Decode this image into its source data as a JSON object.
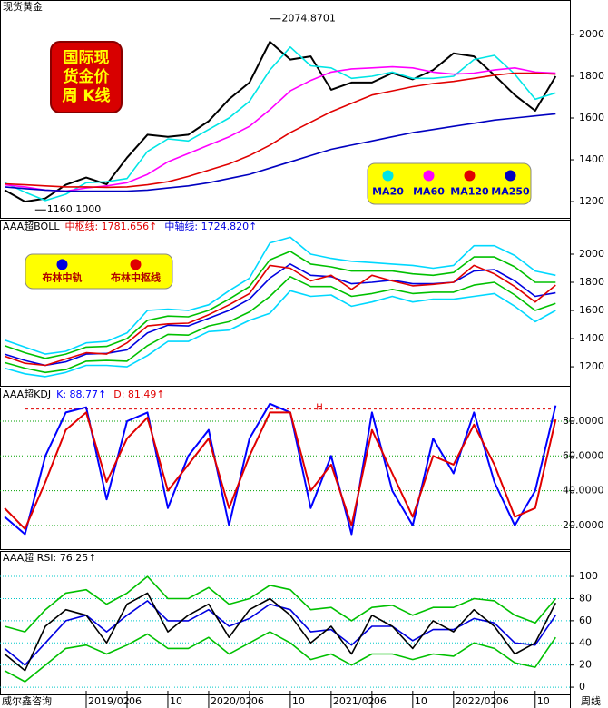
{
  "chart_data": [
    {
      "type": "line",
      "title": "现货黄金",
      "badge_lines": [
        "国际现",
        "货金价",
        "周  K线"
      ],
      "xlim": [
        0.55,
        56.4
      ],
      "x": [
        1,
        3,
        5,
        7,
        9,
        11,
        13,
        15,
        17,
        19,
        21,
        23,
        25,
        27,
        29,
        31,
        33,
        35,
        37,
        39,
        41,
        43,
        45,
        47,
        49,
        51,
        53,
        55
      ],
      "ylim": [
        1122,
        2165
      ],
      "yticks": [
        1200,
        1400,
        1600,
        1800,
        2000
      ],
      "annotations": [
        {
          "x": 27,
          "value": 2074.8701,
          "label": "2074.8701"
        },
        {
          "x": 4,
          "value": 1160.1,
          "label": "1160.1000"
        }
      ],
      "series": [
        {
          "color": "#000000",
          "values": [
            1255,
            1200,
            1215,
            1280,
            1315,
            1283,
            1410,
            1520,
            1510,
            1520,
            1585,
            1690,
            1770,
            1965,
            1880,
            1895,
            1735,
            1770,
            1770,
            1815,
            1785,
            1830,
            1910,
            1895,
            1805,
            1710,
            1635,
            1800
          ]
        },
        {
          "name": "MA20",
          "color": "#00e5e5",
          "values": [
            1290,
            1245,
            1205,
            1235,
            1290,
            1295,
            1310,
            1440,
            1500,
            1490,
            1545,
            1600,
            1680,
            1830,
            1940,
            1850,
            1840,
            1790,
            1800,
            1820,
            1790,
            1790,
            1800,
            1880,
            1900,
            1810,
            1690,
            1720
          ]
        },
        {
          "name": "MA60",
          "color": "#ff00ff",
          "values": [
            1280,
            1270,
            1255,
            1250,
            1265,
            1275,
            1290,
            1330,
            1390,
            1430,
            1470,
            1510,
            1560,
            1640,
            1730,
            1780,
            1820,
            1835,
            1840,
            1845,
            1840,
            1820,
            1810,
            1815,
            1830,
            1840,
            1820,
            1815
          ]
        },
        {
          "name": "MA120",
          "color": "#e00000",
          "values": [
            1285,
            1280,
            1275,
            1270,
            1270,
            1268,
            1270,
            1280,
            1295,
            1320,
            1350,
            1380,
            1420,
            1470,
            1530,
            1580,
            1630,
            1670,
            1710,
            1730,
            1750,
            1765,
            1775,
            1790,
            1805,
            1815,
            1815,
            1810
          ]
        },
        {
          "name": "MA250",
          "color": "#0000c0",
          "values": [
            1270,
            1262,
            1255,
            1250,
            1250,
            1250,
            1250,
            1255,
            1265,
            1275,
            1290,
            1310,
            1330,
            1360,
            1390,
            1420,
            1450,
            1470,
            1490,
            1510,
            1530,
            1545,
            1560,
            1575,
            1590,
            1600,
            1610,
            1620
          ]
        }
      ]
    },
    {
      "type": "line",
      "title": "AAA超BOLL",
      "readouts": [
        {
          "text": "中枢线: 1781.656↑",
          "color": "#e00000"
        },
        {
          "text": "中轴线: 1724.820↑",
          "color": "#0000e0"
        }
      ],
      "xlim": [
        0.55,
        56.4
      ],
      "x": [
        1,
        3,
        5,
        7,
        9,
        11,
        13,
        15,
        17,
        19,
        21,
        23,
        25,
        27,
        29,
        31,
        33,
        35,
        37,
        39,
        41,
        43,
        45,
        47,
        49,
        51,
        53,
        55
      ],
      "ylim": [
        1065,
        2245
      ],
      "yticks": [
        1200,
        1400,
        1600,
        1800,
        2000
      ],
      "series": [
        {
          "name": "布林中轨",
          "color": "#0000e0",
          "values": [
            1290,
            1245,
            1210,
            1235,
            1290,
            1295,
            1320,
            1440,
            1495,
            1490,
            1545,
            1600,
            1680,
            1830,
            1930,
            1850,
            1840,
            1790,
            1800,
            1815,
            1790,
            1790,
            1800,
            1880,
            1890,
            1810,
            1700,
            1725
          ]
        },
        {
          "name": "布林中枢线",
          "color": "#e00000",
          "values": [
            1275,
            1225,
            1210,
            1255,
            1300,
            1290,
            1370,
            1490,
            1505,
            1510,
            1570,
            1640,
            1720,
            1920,
            1900,
            1810,
            1850,
            1750,
            1850,
            1810,
            1775,
            1785,
            1800,
            1920,
            1860,
            1770,
            1660,
            1780
          ]
        },
        {
          "color": "#00d8ff",
          "values": [
            1390,
            1340,
            1290,
            1310,
            1370,
            1380,
            1440,
            1600,
            1610,
            1600,
            1640,
            1740,
            1830,
            2080,
            2120,
            2000,
            1970,
            1950,
            1940,
            1930,
            1920,
            1900,
            1920,
            2060,
            2060,
            1990,
            1880,
            1850
          ]
        },
        {
          "color": "#00d8ff",
          "values": [
            1190,
            1150,
            1130,
            1160,
            1210,
            1210,
            1200,
            1280,
            1380,
            1380,
            1450,
            1460,
            1530,
            1580,
            1740,
            1700,
            1710,
            1630,
            1660,
            1700,
            1660,
            1680,
            1680,
            1700,
            1720,
            1630,
            1520,
            1600
          ]
        },
        {
          "color": "#00c000",
          "values": [
            1350,
            1300,
            1260,
            1290,
            1340,
            1345,
            1400,
            1530,
            1560,
            1555,
            1600,
            1680,
            1770,
            1960,
            2020,
            1930,
            1910,
            1880,
            1880,
            1880,
            1860,
            1850,
            1870,
            1980,
            1980,
            1910,
            1800,
            1800
          ]
        },
        {
          "color": "#00c000",
          "values": [
            1230,
            1190,
            1160,
            1180,
            1240,
            1245,
            1240,
            1350,
            1430,
            1425,
            1490,
            1520,
            1590,
            1700,
            1840,
            1770,
            1770,
            1700,
            1720,
            1750,
            1720,
            1730,
            1730,
            1780,
            1800,
            1710,
            1600,
            1650
          ]
        }
      ]
    },
    {
      "type": "line",
      "title": "AAA超KDJ",
      "readouts": [
        {
          "text": "K: 88.77↑",
          "color": "#0000ff"
        },
        {
          "text": "D: 81.49↑",
          "color": "#e00000"
        }
      ],
      "xlim": [
        0.55,
        56.4
      ],
      "x": [
        1,
        3,
        5,
        7,
        9,
        11,
        13,
        15,
        17,
        19,
        21,
        23,
        25,
        27,
        29,
        31,
        33,
        35,
        37,
        39,
        41,
        43,
        45,
        47,
        49,
        51,
        53,
        55
      ],
      "ylim": [
        6.4,
        99.3
      ],
      "yticks": [
        {
          "value": 20,
          "label": "20.0000"
        },
        {
          "value": 40,
          "label": "40.0000"
        },
        {
          "value": 60,
          "label": "60.0000"
        },
        {
          "value": 80,
          "label": "80.0000"
        }
      ],
      "grid": true,
      "grid_color": "#00a000",
      "h_level": {
        "value": 87,
        "label": "H"
      },
      "series": [
        {
          "color": "#0000ff",
          "values": [
            25,
            15,
            60,
            85,
            88,
            35,
            80,
            85,
            30,
            60,
            75,
            20,
            70,
            90,
            85,
            30,
            60,
            15,
            85,
            40,
            20,
            70,
            50,
            85,
            45,
            20,
            40,
            89
          ]
        },
        {
          "color": "#e00000",
          "values": [
            30,
            18,
            45,
            75,
            85,
            45,
            70,
            82,
            40,
            55,
            70,
            30,
            60,
            85,
            85,
            40,
            55,
            20,
            75,
            50,
            25,
            60,
            55,
            78,
            55,
            25,
            30,
            81
          ]
        }
      ]
    },
    {
      "type": "line",
      "title": "AAA超  RSI: 76.25↑",
      "xlim": [
        0.55,
        56.4
      ],
      "x": [
        1,
        3,
        5,
        7,
        9,
        11,
        13,
        15,
        17,
        19,
        21,
        23,
        25,
        27,
        29,
        31,
        33,
        35,
        37,
        39,
        41,
        43,
        45,
        47,
        49,
        51,
        53,
        55
      ],
      "ylim": [
        -6.5,
        123
      ],
      "yticks": [
        0,
        20,
        40,
        60,
        80,
        100
      ],
      "grid": true,
      "grid_color": "#00c8c8",
      "xticks": [
        {
          "value": 9,
          "label": "2019/02"
        },
        {
          "value": 13,
          "label": "06"
        },
        {
          "value": 17,
          "label": "10"
        },
        {
          "value": 21,
          "label": "2020/02"
        },
        {
          "value": 25,
          "label": "06"
        },
        {
          "value": 29,
          "label": "10"
        },
        {
          "value": 33,
          "label": "2021/02"
        },
        {
          "value": 37,
          "label": "06"
        },
        {
          "value": 41,
          "label": "10"
        },
        {
          "value": 45,
          "label": "2022/02"
        },
        {
          "value": 49,
          "label": "06"
        },
        {
          "value": 53,
          "label": "10"
        }
      ],
      "footer_left": "威尔鑫咨询",
      "footer_right": "周线",
      "series": [
        {
          "color": "#00c000",
          "values": [
            55,
            50,
            70,
            85,
            88,
            75,
            85,
            100,
            80,
            80,
            90,
            75,
            80,
            92,
            88,
            70,
            72,
            60,
            72,
            74,
            65,
            72,
            72,
            80,
            78,
            65,
            58,
            80
          ]
        },
        {
          "color": "#00c000",
          "values": [
            15,
            5,
            20,
            35,
            38,
            30,
            38,
            48,
            35,
            35,
            45,
            30,
            40,
            50,
            40,
            25,
            30,
            20,
            30,
            30,
            25,
            30,
            28,
            40,
            35,
            22,
            18,
            45
          ]
        },
        {
          "color": "#0000e0",
          "values": [
            35,
            20,
            40,
            60,
            65,
            50,
            65,
            78,
            60,
            60,
            70,
            55,
            62,
            75,
            70,
            50,
            52,
            38,
            55,
            55,
            42,
            52,
            52,
            62,
            58,
            40,
            38,
            65
          ]
        },
        {
          "color": "#000000",
          "values": [
            30,
            15,
            55,
            70,
            65,
            40,
            75,
            85,
            50,
            65,
            75,
            45,
            70,
            80,
            65,
            40,
            55,
            30,
            65,
            55,
            35,
            60,
            50,
            70,
            55,
            30,
            40,
            76
          ]
        }
      ]
    }
  ]
}
